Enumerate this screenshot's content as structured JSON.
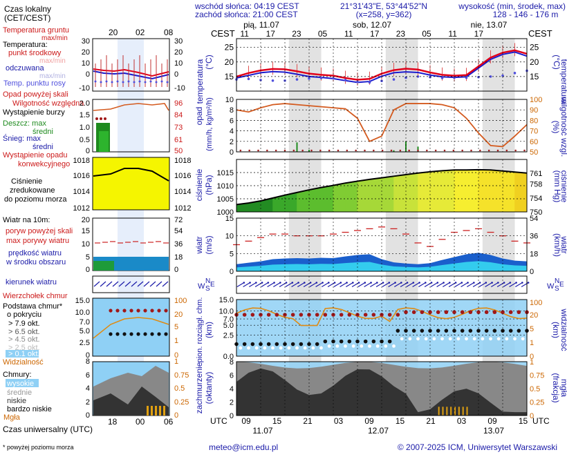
{
  "header": {
    "sunrise": "wschód słońca: 04:19 CEST",
    "sunset": "zachód słońca: 21:00 CEST",
    "coords": "21°31'43\"E, 53°44'52\"N",
    "grid": "(x=258, y=362)",
    "altitude_label": "wysokość (min, środek, max)",
    "altitude_values": "128 - 146 - 176 m",
    "tz_cest": "CEST",
    "tz_utc": "UTC"
  },
  "days": [
    {
      "label": "pią, 11.07"
    },
    {
      "label": "sob, 12.07"
    },
    {
      "label": "nie, 13.07"
    }
  ],
  "top_hours": [
    "11",
    "17",
    "23",
    "05",
    "11",
    "17",
    "23",
    "05",
    "11",
    "17"
  ],
  "bottom_hours": [
    "09",
    "15",
    "21",
    "03",
    "09",
    "15",
    "21",
    "03",
    "09",
    "15"
  ],
  "bottom_dates": [
    "11.07",
    "12.07",
    "13.07"
  ],
  "legend": {
    "local_time": "Czas lokalny",
    "local_time_sub": "(CET/CEST)",
    "local_ticks": [
      "20",
      "02",
      "08"
    ],
    "utc_time": "Czas uniwersalny (UTC)",
    "utc_ticks": [
      "18",
      "00",
      "06"
    ],
    "soil_temp": "Temperatura gruntu",
    "soil_temp_sub": "max/min",
    "temperature": "Temperatura:",
    "mid_point": "punkt środkowy",
    "max_min": "max/min",
    "chill": "odczuwana",
    "chill_sub": "max/min",
    "dew": "Temp. punktu rosy",
    "precip_above": "Opad powyżej skali",
    "humidity": "Wilgotność względna",
    "storm": "Wystąpienie burzy",
    "rain": "Deszcz: max",
    "rain_mid": "średni",
    "snow": "Śnieg: max",
    "snow_mid": "średni",
    "precip_event": "Wystąpienie opadu",
    "precip_event2": "konwekcyjnego",
    "pressure": "Ciśnienie",
    "pressure2": "zredukowane",
    "pressure3": "do poziomu morza",
    "wind_at": "Wiatr na 10m:",
    "gusts_above": "poryw powyżej skali",
    "max_gusts": "max porywy wiatru",
    "avg_wind": "prędkość wiatru",
    "avg_wind2": "w środku obszaru",
    "wind_dir": "kierunek wiatru",
    "cloud_top": "Wierzchołek chmur",
    "cloud_base": "Podstawa chmur*",
    "cloud_base2": "o pokryciu",
    "okt1": "> 7.9 okt.",
    "okt2": "> 6.5 okt.",
    "okt3": "> 4.5 okt.",
    "okt4": "> 2.5 okt.",
    "okt5": "> 0.1 okt.",
    "visibility": "Widzialność",
    "clouds": "Chmury:",
    "high": "wysokie",
    "mid": "średnie",
    "low": "niskie",
    "very_low": "bardzo niskie",
    "fog": "Mgła",
    "footnote": "* powyżej poziomu morza"
  },
  "footer": {
    "email": "meteo@icm.edu.pl",
    "copyright": "© 2007-2025 ICM, Uniwersytet Warszawski"
  },
  "legend_axes": {
    "temp_left": [
      "30",
      "20",
      "10",
      "0",
      "-10"
    ],
    "temp_right": [
      "30",
      "20",
      "10",
      "0",
      "-10"
    ],
    "precip_left": [
      "2.0",
      "1.5",
      "1.0",
      "0.5",
      "0"
    ],
    "precip_right": [
      "96",
      "84",
      "73",
      "61",
      "50"
    ],
    "press_left": [
      "1018",
      "1016",
      "1014",
      "1012"
    ],
    "press_right": [
      "1018",
      "1016",
      "1014",
      "1012"
    ],
    "wind_left": [
      "20",
      "15",
      "10",
      "5",
      "0"
    ],
    "wind_right": [
      "72",
      "54",
      "36",
      "18",
      "0"
    ],
    "cloud_left": [
      "15.0",
      "10.0",
      "7.0",
      "5.0",
      "2.5",
      "0"
    ],
    "cloud_right": [
      "100",
      "20",
      "5",
      "1",
      "0"
    ],
    "oct_left": [
      "8",
      "6",
      "4",
      "2",
      "0"
    ],
    "oct_right": [
      "1",
      "0.75",
      "0.5",
      "0.25",
      "0"
    ]
  },
  "axes": {
    "temp": {
      "label": "temperatura",
      "unit": "(°C)",
      "ticks": [
        "25",
        "20",
        "15"
      ],
      "ylim": [
        10,
        28
      ]
    },
    "precip": {
      "label": "opad",
      "unit": "(mm/h, kg/m²/h)",
      "ticks": [
        "10",
        "8",
        "6",
        "4",
        "2",
        "0"
      ],
      "ylim": [
        0,
        10
      ],
      "right_label": "wilgotność wzgl.",
      "right_unit": "(%)",
      "right_ticks": [
        "100",
        "90",
        "80",
        "70",
        "60",
        "50"
      ],
      "right_lim": [
        50,
        100
      ]
    },
    "pressure": {
      "label": "ciśnienie",
      "unit": "(hPa)",
      "ticks": [
        "1015",
        "1010",
        "1005",
        "1000"
      ],
      "ylim": [
        1000,
        1020
      ],
      "right_unit": "(mm Hg)",
      "right_ticks": [
        "761",
        "758",
        "754",
        "750"
      ]
    },
    "wind": {
      "label": "wiatr",
      "unit": "(m/s)",
      "ticks": [
        "15",
        "10",
        "5",
        "0"
      ],
      "ylim": [
        0,
        15
      ],
      "right_unit": "(km/h)",
      "right_ticks": [
        "54",
        "36",
        "18",
        "0"
      ]
    },
    "dir": {
      "label_w": "W",
      "label_n": "N",
      "label_s": "S",
      "label_e": "E"
    },
    "cloudbase": {
      "label": "pion. rozciągł. chm.",
      "unit": "(km)",
      "ticks": [
        "15.0",
        "10.0",
        "7.0",
        "5.0",
        "2.5",
        "0.0"
      ],
      "right_label": "widzialność",
      "right_unit": "(km)",
      "right_ticks": [
        "100",
        "20",
        "5",
        "1",
        "0"
      ]
    },
    "clouds": {
      "label": "zachmurzenie",
      "unit": "(oktanty)",
      "ticks": [
        "8",
        "6",
        "4",
        "2",
        "0"
      ],
      "right_label": "mgła",
      "right_unit": "(frakcja)",
      "right_ticks": [
        "1",
        "0.75",
        "0.5",
        "0.25",
        "0"
      ]
    }
  },
  "colors": {
    "temp_mid": "#e0001a",
    "temp_chill": "#1a1acc",
    "dew": "#5050dd",
    "humidity": "#d45a1e",
    "rain": "#1e8a1e",
    "pressure_line": "#000000",
    "gusts": "#cc2020",
    "wind_fill": "#1a5fcc",
    "cloud_bg": "#8fd0f5",
    "night": "#d8d8d8"
  },
  "chart_data": [
    {
      "type": "line",
      "title": "temperatura",
      "x": [
        0,
        3,
        6,
        9,
        12,
        15,
        18,
        21,
        24,
        27,
        30,
        33,
        36,
        39,
        42,
        45,
        48,
        51,
        54,
        57,
        60,
        63,
        66,
        69,
        72
      ],
      "series": [
        {
          "name": "punkt środkowy",
          "values": [
            15.0,
            16.2,
            17.1,
            17.6,
            17.5,
            16.8,
            16.0,
            15.6,
            15.3,
            14.5,
            13.9,
            14.2,
            16.0,
            17.2,
            17.7,
            17.4,
            16.4,
            15.6,
            15.3,
            15.5,
            18.5,
            21.5,
            23.2,
            24.0,
            22.8
          ]
        },
        {
          "name": "odczuwana",
          "values": [
            14.5,
            15.4,
            16.3,
            16.7,
            16.5,
            15.8,
            15.0,
            14.7,
            14.3,
            13.6,
            13.0,
            13.3,
            15.1,
            16.3,
            16.6,
            16.4,
            15.5,
            14.9,
            14.7,
            14.9,
            17.9,
            20.9,
            22.6,
            23.4,
            22.0
          ]
        },
        {
          "name": "Temp. punktu rosy",
          "values": [
            14.0,
            14.2,
            13.8,
            13.6,
            13.6,
            14.0,
            14.3,
            14.5,
            14.4,
            13.8,
            13.2,
            13.0,
            13.5,
            14.0,
            14.6,
            15.0,
            14.8,
            14.5,
            14.6,
            14.6,
            14.8,
            15.0,
            15.3,
            16.2,
            17.0
          ]
        }
      ],
      "ylim": [
        10,
        28
      ]
    },
    {
      "type": "bar",
      "title": "opad",
      "x": [
        0,
        3,
        6,
        9,
        12,
        15,
        18,
        21,
        24,
        27,
        30,
        33,
        36,
        39,
        42,
        45,
        48,
        51,
        54,
        57,
        60,
        63,
        66,
        69,
        72
      ],
      "series": [
        {
          "name": "Deszcz",
          "values": [
            0,
            0,
            0,
            0,
            0.1,
            1.8,
            0.4,
            0,
            0,
            0,
            0,
            0,
            0,
            0.3,
            2.0,
            1.0,
            0,
            0,
            0,
            0,
            0,
            0,
            0,
            0,
            0
          ]
        },
        {
          "name": "wilgotność względna",
          "values": [
            90,
            88,
            92,
            95,
            96,
            95,
            94,
            93,
            92,
            91,
            82,
            60,
            65,
            90,
            96,
            96,
            96,
            95,
            92,
            82,
            68,
            56,
            55,
            65,
            76
          ]
        }
      ],
      "ylim": [
        0,
        10
      ]
    },
    {
      "type": "area",
      "title": "ciśnienie",
      "x": [
        0,
        3,
        6,
        9,
        12,
        15,
        18,
        21,
        24,
        27,
        30,
        33,
        36,
        39,
        42,
        45,
        48,
        51,
        54,
        57,
        60,
        63,
        66,
        69,
        72
      ],
      "values": [
        1002.8,
        1003.4,
        1004.2,
        1005.3,
        1006.4,
        1007.4,
        1008.4,
        1009.3,
        1010.1,
        1011.0,
        1011.7,
        1012.4,
        1013.0,
        1013.6,
        1014.2,
        1014.8,
        1015.3,
        1015.7,
        1016.0,
        1016.0,
        1016.1,
        1016.0,
        1015.6,
        1015.2,
        1014.8
      ],
      "ylim": [
        1000,
        1020
      ]
    },
    {
      "type": "line",
      "title": "wiatr",
      "x": [
        0,
        3,
        6,
        9,
        12,
        15,
        18,
        21,
        24,
        27,
        30,
        33,
        36,
        39,
        42,
        45,
        48,
        51,
        54,
        57,
        60,
        63,
        66,
        69,
        72
      ],
      "series": [
        {
          "name": "prędkość wiatru",
          "values": [
            2.0,
            2.4,
            2.8,
            3.4,
            3.6,
            3.7,
            3.6,
            3.8,
            3.7,
            4.2,
            4.6,
            4.8,
            3.4,
            2.5,
            2.2,
            2.0,
            2.3,
            3.2,
            4.0,
            4.8,
            5.2,
            4.6,
            3.6,
            3.0,
            2.8
          ]
        },
        {
          "name": "max porywy wiatru",
          "values": [
            7.5,
            8.5,
            9.5,
            10.5,
            10.5,
            10.0,
            10.0,
            10.0,
            10.5,
            11.0,
            11.5,
            12.0,
            12.5,
            12.0,
            10.5,
            8.0,
            7.0,
            9.0,
            11.0,
            11.5,
            12.0,
            11.0,
            10.0,
            8.5,
            8.0
          ]
        }
      ],
      "ylim": [
        0,
        15
      ]
    }
  ]
}
